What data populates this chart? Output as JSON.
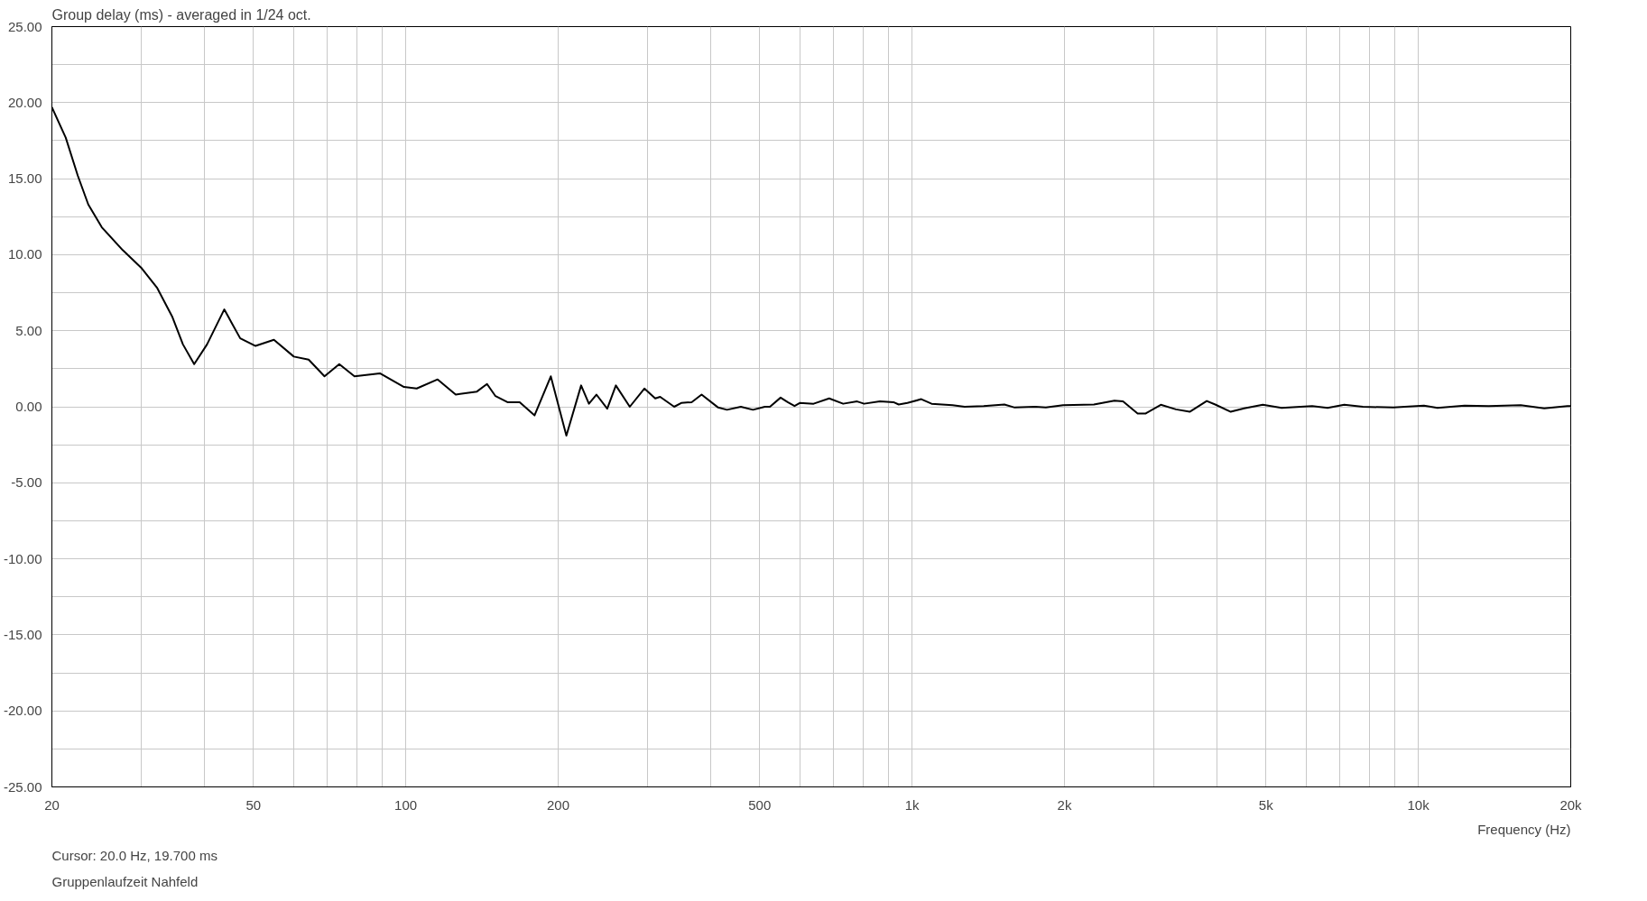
{
  "chart_data": {
    "type": "line",
    "title": "Group delay (ms) - averaged in 1/24 oct.",
    "xlabel": "Frequency (Hz)",
    "annotations": [
      "Cursor: 20.0 Hz, 19.700 ms",
      "Gruppenlaufzeit Nahfeld"
    ],
    "log": "x",
    "grid": true,
    "marker": "none",
    "line_style": "solid",
    "xlim": [
      20,
      20000
    ],
    "xticks": [
      20,
      {
        "value": 30,
        "label": null
      },
      {
        "value": 40,
        "label": null
      },
      50,
      {
        "value": 60,
        "label": null
      },
      {
        "value": 70,
        "label": null
      },
      {
        "value": 80,
        "label": null
      },
      {
        "value": 90,
        "label": null
      },
      100,
      200,
      {
        "value": 300,
        "label": null
      },
      {
        "value": 400,
        "label": null
      },
      500,
      {
        "value": 600,
        "label": null
      },
      {
        "value": 700,
        "label": null
      },
      {
        "value": 800,
        "label": null
      },
      {
        "value": 900,
        "label": null
      },
      {
        "value": 1000,
        "label": "1k"
      },
      {
        "value": 2000,
        "label": "2k"
      },
      {
        "value": 3000,
        "label": null
      },
      {
        "value": 4000,
        "label": null
      },
      {
        "value": 5000,
        "label": "5k"
      },
      {
        "value": 6000,
        "label": null
      },
      {
        "value": 7000,
        "label": null
      },
      {
        "value": 8000,
        "label": null
      },
      {
        "value": 9000,
        "label": null
      },
      {
        "value": 10000,
        "label": "10k"
      },
      {
        "value": 20000,
        "label": "20k"
      }
    ],
    "ylim": [
      -25,
      25
    ],
    "yticks": [
      {
        "value": -25,
        "label": "-25.00"
      },
      {
        "value": -22.5,
        "label": null
      },
      {
        "value": -20,
        "label": "-20.00"
      },
      {
        "value": -17.5,
        "label": null
      },
      {
        "value": -15,
        "label": "-15.00"
      },
      {
        "value": -12.5,
        "label": null
      },
      {
        "value": -10,
        "label": "-10.00"
      },
      {
        "value": -7.5,
        "label": null
      },
      {
        "value": -5,
        "label": "-5.00"
      },
      {
        "value": -2.5,
        "label": null
      },
      {
        "value": 0,
        "label": "0.00"
      },
      {
        "value": 2.5,
        "label": null
      },
      {
        "value": 5,
        "label": "5.00"
      },
      {
        "value": 7.5,
        "label": null
      },
      {
        "value": 10,
        "label": "10.00"
      },
      {
        "value": 12.5,
        "label": null
      },
      {
        "value": 15,
        "label": "15.00"
      },
      {
        "value": 17.5,
        "label": null
      },
      {
        "value": 20,
        "label": "20.00"
      },
      {
        "value": 22.5,
        "label": null
      },
      {
        "value": 25,
        "label": "25.00"
      }
    ],
    "series": [
      {
        "color": "#000000",
        "x": [
          20,
          21.3,
          22.5,
          23.6,
          25.1,
          27.6,
          30.1,
          32.3,
          34.6,
          36.3,
          38.2,
          40.5,
          43.8,
          47.1,
          50.5,
          54.9,
          60.1,
          64.3,
          69.1,
          73.9,
          79.2,
          88.9,
          99.2,
          105.1,
          115.6,
          125.5,
          138.2,
          144.7,
          150.4,
          158.8,
          167.9,
          179.6,
          193.4,
          207.6,
          222,
          230,
          238,
          250,
          260,
          277,
          296,
          311,
          318,
          339,
          350,
          367,
          384,
          414,
          431,
          459,
          485,
          512,
          524,
          550,
          568,
          586,
          600,
          639,
          686,
          731,
          779,
          804,
          864,
          919,
          941,
          979,
          1043,
          1093,
          1202,
          1270,
          1385,
          1522,
          1595,
          1750,
          1838,
          1988,
          2287,
          2510,
          2610,
          2790,
          2890,
          3100,
          3320,
          3535,
          3820,
          3970,
          4260,
          4530,
          4930,
          5370,
          6170,
          6620,
          7140,
          7770,
          8930,
          10260,
          10910,
          12340,
          13770,
          15930,
          17730,
          19700,
          20000
        ],
        "values": [
          19.7,
          17.7,
          15.2,
          13.3,
          11.8,
          10.3,
          9.1,
          7.8,
          5.9,
          4.1,
          2.8,
          4.1,
          6.4,
          4.5,
          4.0,
          4.4,
          3.3,
          3.1,
          2.0,
          2.8,
          2.0,
          2.2,
          1.3,
          1.2,
          1.8,
          0.8,
          1.0,
          1.5,
          0.7,
          0.3,
          0.3,
          -0.57,
          2.0,
          -1.9,
          1.4,
          0.2,
          0.8,
          -0.13,
          1.4,
          0.0,
          1.2,
          0.55,
          0.65,
          0.0,
          0.25,
          0.3,
          0.8,
          -0.05,
          -0.2,
          0.0,
          -0.2,
          0.0,
          0.0,
          0.6,
          0.3,
          0.05,
          0.25,
          0.2,
          0.55,
          0.2,
          0.35,
          0.2,
          0.35,
          0.3,
          0.15,
          0.25,
          0.5,
          0.2,
          0.1,
          0.0,
          0.05,
          0.15,
          -0.05,
          0.0,
          -0.05,
          0.1,
          0.15,
          0.4,
          0.35,
          -0.45,
          -0.45,
          0.13,
          -0.17,
          -0.33,
          0.38,
          0.15,
          -0.33,
          -0.1,
          0.13,
          -0.07,
          0.05,
          -0.08,
          0.13,
          0.0,
          -0.05,
          0.07,
          -0.08,
          0.07,
          0.05,
          0.1,
          -0.1,
          0.05,
          0.05
        ]
      }
    ]
  }
}
